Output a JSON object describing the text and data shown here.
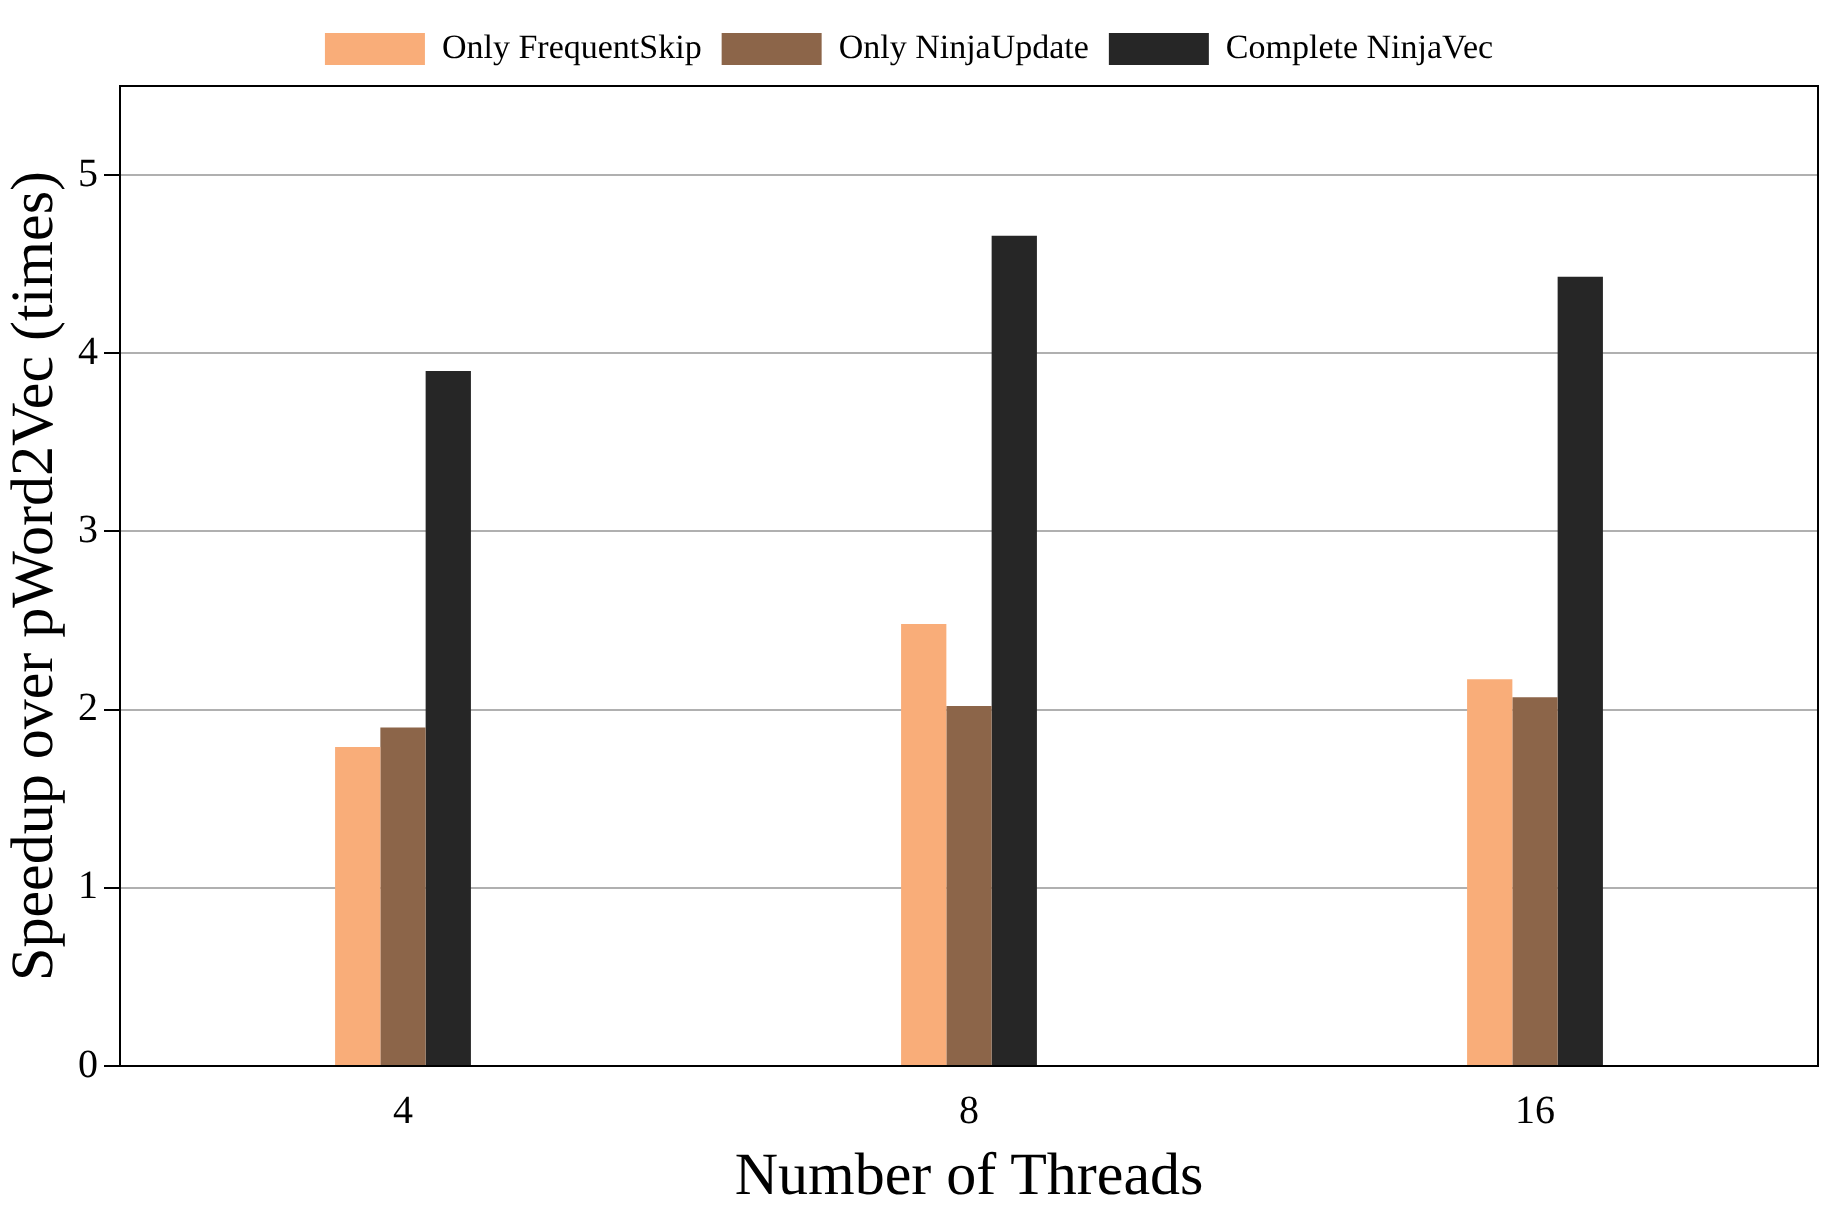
{
  "chart_data": {
    "type": "bar",
    "xlabel": "Number of Threads",
    "ylabel": "Speedup over pWord2Vec (times)",
    "categories": [
      "4",
      "8",
      "16"
    ],
    "series": [
      {
        "name": "Only FrequentSkip",
        "color": "#f9ad79",
        "values": [
          1.79,
          2.48,
          2.17
        ]
      },
      {
        "name": "Only NinjaUpdate",
        "color": "#8c6549",
        "values": [
          1.9,
          2.02,
          2.07
        ]
      },
      {
        "name": "Complete NinjaVec",
        "color": "#262626",
        "values": [
          3.9,
          4.66,
          4.43
        ]
      }
    ],
    "ylim": [
      0,
      5.5
    ],
    "yticks": [
      0,
      1,
      2,
      3,
      4,
      5
    ],
    "grid": "y",
    "legend": "top"
  }
}
